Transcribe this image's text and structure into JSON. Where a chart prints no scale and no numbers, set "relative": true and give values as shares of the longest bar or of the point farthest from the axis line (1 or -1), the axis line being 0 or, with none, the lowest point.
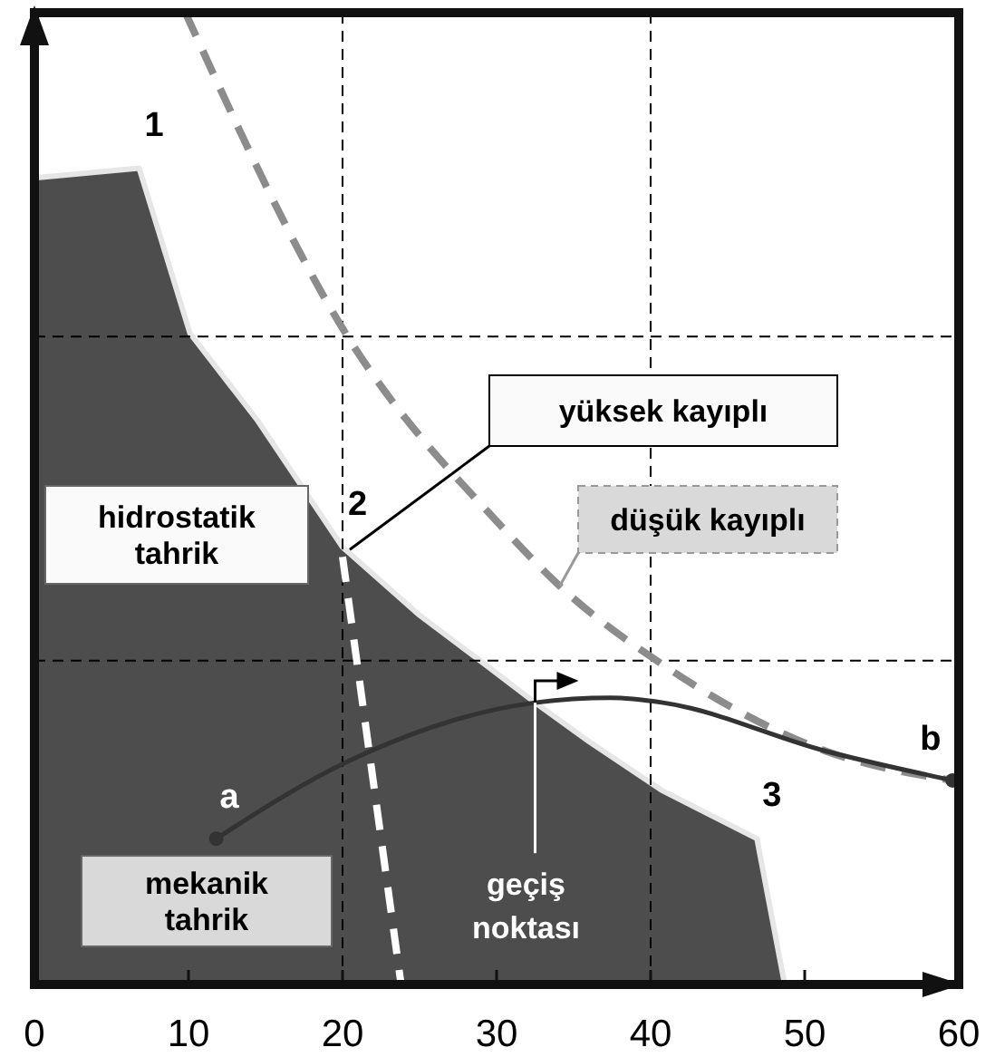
{
  "chart_data": {
    "type": "area",
    "relative": true,
    "xlim": [
      0,
      60
    ],
    "xticks": [
      0,
      10,
      20,
      30,
      40,
      50,
      60
    ],
    "grid": true,
    "tick_labels": "x",
    "series": [
      {
        "color": "#4d4d4d",
        "x": [
          0,
          6.8,
          10.1,
          14.5,
          20,
          25,
          29.2,
          32.5,
          36,
          40.7,
          46.9,
          48.7
        ],
        "values": [
          0.83,
          0.84,
          0.67,
          0.58,
          0.45,
          0.38,
          0.33,
          0.29,
          0.25,
          0.2,
          0.15,
          0
        ]
      },
      {
        "type": "line",
        "color": "#8c8c8c",
        "line_style": "dashed",
        "x": [
          9.8,
          20.2,
          30.4,
          34.1,
          40.7,
          51.4,
          59.6
        ],
        "values": [
          1,
          0.67,
          0.47,
          0.41,
          0.33,
          0.24,
          0.21
        ]
      },
      {
        "type": "line",
        "color": "#ffffff",
        "line_style": "dashed",
        "x": [
          20,
          23.8
        ],
        "values": [
          0.44,
          0
        ]
      },
      {
        "type": "line",
        "color": "#333333",
        "line_style": "solid",
        "x": [
          11.8,
          20.4,
          32.5,
          37.4,
          40.8,
          51.4,
          59.6
        ],
        "values": [
          0.15,
          0.23,
          0.29,
          0.295,
          0.29,
          0.24,
          0.21
        ]
      }
    ],
    "annotations": [
      "hidrostatik tahrik",
      "mekanik tahrik",
      "yüksek kayıplı",
      {
        "text": "düşük kayıplı",
        "x": 34.1,
        "y": 0.41
      },
      {
        "text": "1",
        "x": 6.8,
        "y": 0.84
      },
      {
        "text": "2",
        "x": 20,
        "y": 0.45
      },
      {
        "text": "3",
        "x": 46.9,
        "y": 0.15
      },
      {
        "text": "a",
        "x": 11.8,
        "y": 0.15
      },
      {
        "text": "b",
        "x": 59.6,
        "y": 0.21
      },
      {
        "text": "geçiş noktası",
        "x": 32.5,
        "y": 0.29
      }
    ]
  }
}
